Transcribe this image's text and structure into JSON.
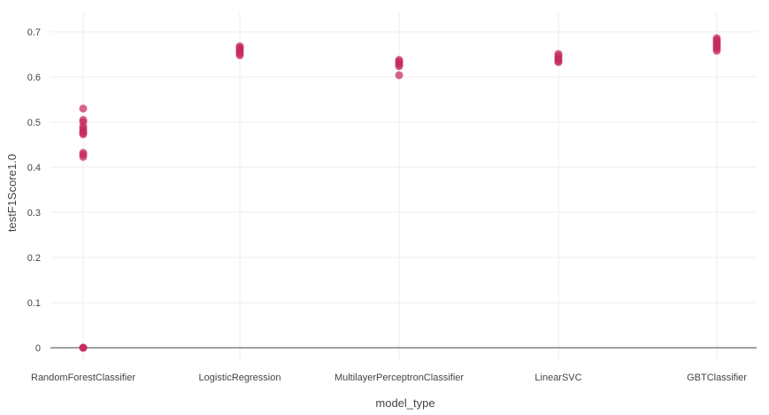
{
  "chart_data": {
    "type": "scatter",
    "title": "",
    "xlabel": "model_type",
    "ylabel": "testF1Score1.0",
    "ylim": [
      -0.05,
      0.73
    ],
    "yticks": [
      0,
      0.1,
      0.2,
      0.3,
      0.4,
      0.5,
      0.6,
      0.7
    ],
    "ytick_labels": [
      "0",
      "0.1",
      "0.2",
      "0.3",
      "0.4",
      "0.5",
      "0.6",
      "0.7"
    ],
    "grid": true,
    "legend": "none",
    "marker_color": "#c6295c",
    "categories": [
      "RandomForestClassifier",
      "LogisticRegression",
      "MultilayerPerceptronClassifier",
      "LinearSVC",
      "GBTClassifier"
    ],
    "series": [
      {
        "values": {
          "RandomForestClassifier": [
            0.53,
            0.505,
            0.5,
            0.49,
            0.485,
            0.48,
            0.476,
            0.473,
            0.432,
            0.428,
            0.423,
            0.0,
            0.0,
            0.0
          ],
          "LogisticRegression": [
            0.668,
            0.665,
            0.662,
            0.658,
            0.655,
            0.652,
            0.648
          ],
          "MultilayerPerceptronClassifier": [
            0.638,
            0.634,
            0.631,
            0.627,
            0.624,
            0.604
          ],
          "LinearSVC": [
            0.651,
            0.647,
            0.643,
            0.639,
            0.635,
            0.633
          ],
          "GBTClassifier": [
            0.686,
            0.682,
            0.678,
            0.674,
            0.67,
            0.666,
            0.662,
            0.658
          ]
        }
      }
    ]
  }
}
